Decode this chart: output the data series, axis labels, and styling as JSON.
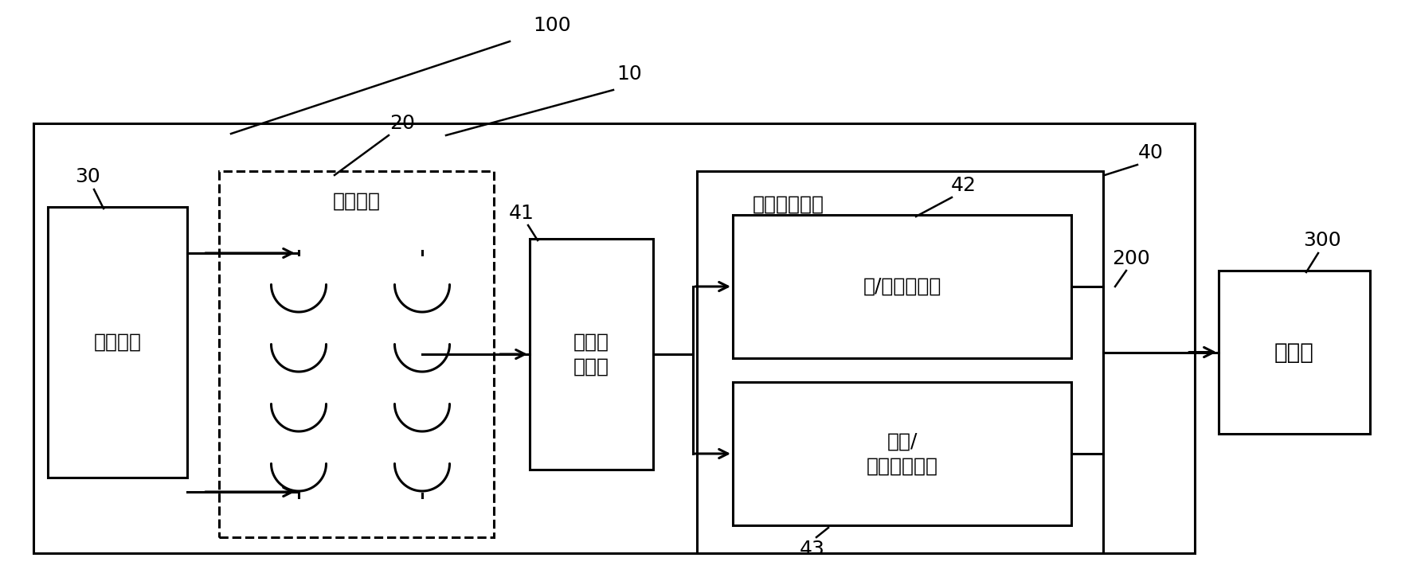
{
  "title": "100",
  "label_10": "10",
  "label_20": "20",
  "label_30": "30",
  "label_40": "40",
  "label_41": "41",
  "label_42": "42",
  "label_43": "43",
  "label_200": "200",
  "label_300": "300",
  "box_excite": "激励电路",
  "box_sense": "敏感元件",
  "box_opamp": "运算放\n大电路",
  "box_adc": "模/数转换电路",
  "box_vc": "电压/\n电流转换电路",
  "box_host": "上位机",
  "label_output_mod": "输出调制电路",
  "bg_color": "#ffffff",
  "box_color": "#000000",
  "line_color": "#000000",
  "dashed_color": "#000000",
  "font_color": "#000000",
  "fig_width": 17.69,
  "fig_height": 7.35
}
